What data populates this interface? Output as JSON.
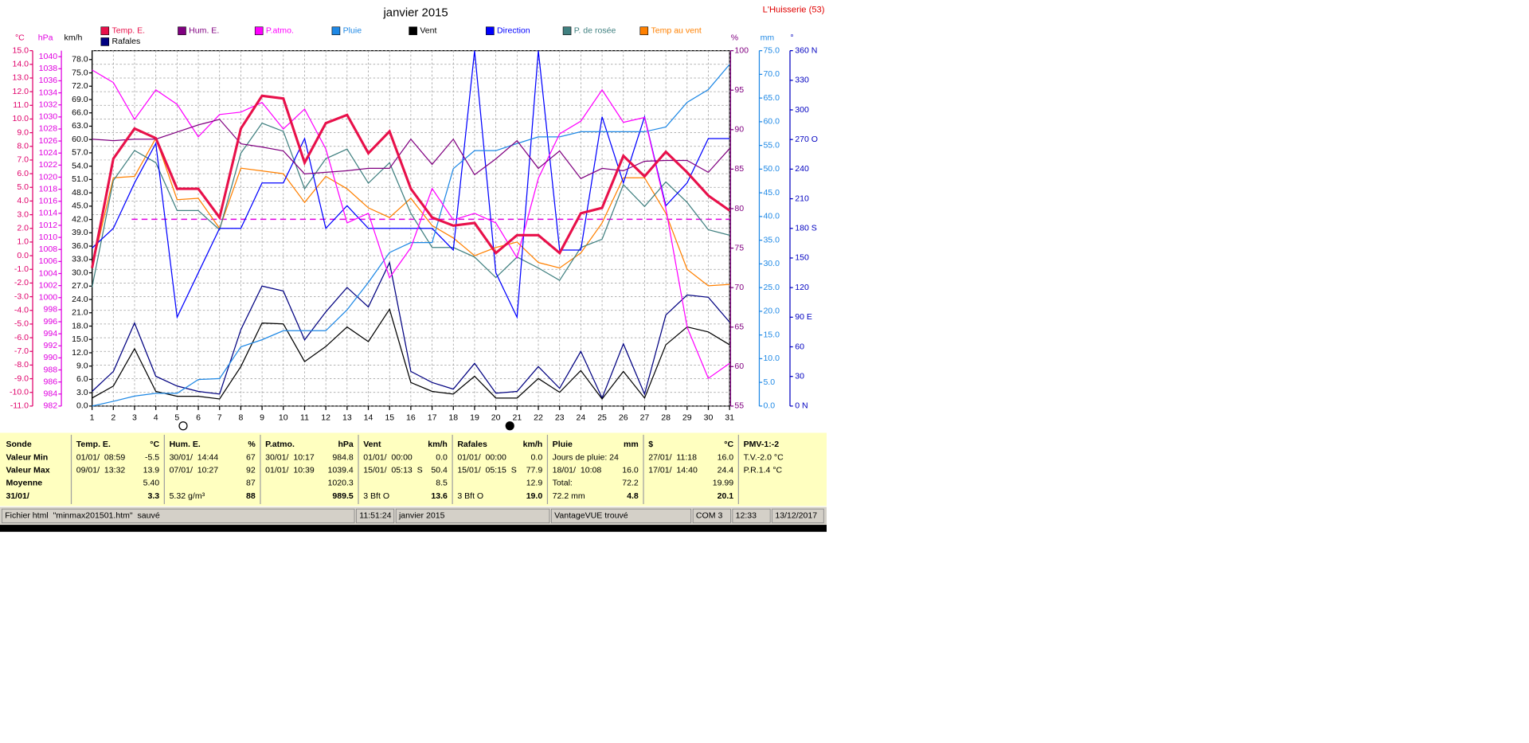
{
  "title": "janvier 2015",
  "station": "L'Huisserie (53)",
  "chart_data": {
    "type": "line",
    "grid": true,
    "categories": [
      1,
      2,
      3,
      4,
      5,
      6,
      7,
      8,
      9,
      10,
      11,
      12,
      13,
      14,
      15,
      16,
      17,
      18,
      19,
      20,
      21,
      22,
      23,
      24,
      25,
      26,
      27,
      28,
      29,
      30,
      31
    ],
    "axes": [
      {
        "id": "temp",
        "label": "°C",
        "side": "left",
        "color": "#e0006a",
        "lim": [
          -11,
          15
        ],
        "ticks": [
          {
            "value": -11,
            "label": "-11.0"
          },
          {
            "value": -10,
            "label": "-10.0"
          },
          {
            "value": -9,
            "label": "-9.0"
          },
          {
            "value": -8,
            "label": "-8.0"
          },
          {
            "value": -7,
            "label": "-7.0"
          },
          {
            "value": -6,
            "label": "-6.0"
          },
          {
            "value": -5,
            "label": "-5.0"
          },
          {
            "value": -4,
            "label": "-4.0"
          },
          {
            "value": -3,
            "label": "-3.0"
          },
          {
            "value": -2,
            "label": "-2.0"
          },
          {
            "value": -1,
            "label": "-1.0"
          },
          {
            "value": 0,
            "label": "0.0"
          },
          {
            "value": 1,
            "label": "1.0"
          },
          {
            "value": 2,
            "label": "2.0"
          },
          {
            "value": 3,
            "label": "3.0"
          },
          {
            "value": 4,
            "label": "4.0"
          },
          {
            "value": 5,
            "label": "5.0"
          },
          {
            "value": 6,
            "label": "6.0"
          },
          {
            "value": 7,
            "label": "7.0"
          },
          {
            "value": 8,
            "label": "8.0"
          },
          {
            "value": 9,
            "label": "9.0"
          },
          {
            "value": 10,
            "label": "10.0"
          },
          {
            "value": 11,
            "label": "11.0"
          },
          {
            "value": 12,
            "label": "12.0"
          },
          {
            "value": 13,
            "label": "13.0"
          },
          {
            "value": 14,
            "label": "14.0"
          },
          {
            "value": 15,
            "label": "15.0"
          }
        ]
      },
      {
        "id": "hpa",
        "label": "hPa",
        "side": "left",
        "color": "#e000e0",
        "lim": [
          982,
          1041
        ],
        "ticks": [
          982,
          984,
          986,
          988,
          990,
          992,
          994,
          996,
          998,
          1000,
          1002,
          1004,
          1006,
          1008,
          1010,
          1012,
          1014,
          1016,
          1018,
          1020,
          1022,
          1024,
          1026,
          1028,
          1030,
          1032,
          1034,
          1036,
          1038,
          1040
        ]
      },
      {
        "id": "kmh",
        "label": "km/h",
        "side": "left",
        "color": "#000000",
        "lim": [
          0,
          80
        ],
        "ticks": [
          {
            "value": 0,
            "label": "0.0"
          },
          {
            "value": 3,
            "label": "3.0"
          },
          {
            "value": 6,
            "label": "6.0"
          },
          {
            "value": 9,
            "label": "9.0"
          },
          {
            "value": 12,
            "label": "12.0"
          },
          {
            "value": 15,
            "label": "15.0"
          },
          {
            "value": 18,
            "label": "18.0"
          },
          {
            "value": 21,
            "label": "21.0"
          },
          {
            "value": 24,
            "label": "24.0"
          },
          {
            "value": 27,
            "label": "27.0"
          },
          {
            "value": 30,
            "label": "30.0"
          },
          {
            "value": 33,
            "label": "33.0"
          },
          {
            "value": 36,
            "label": "36.0"
          },
          {
            "value": 39,
            "label": "39.0"
          },
          {
            "value": 42,
            "label": "42.0"
          },
          {
            "value": 45,
            "label": "45.0"
          },
          {
            "value": 48,
            "label": "48.0"
          },
          {
            "value": 51,
            "label": "51.0"
          },
          {
            "value": 54,
            "label": "54.0"
          },
          {
            "value": 57,
            "label": "57.0"
          },
          {
            "value": 60,
            "label": "60.0"
          },
          {
            "value": 63,
            "label": "63.0"
          },
          {
            "value": 66,
            "label": "66.0"
          },
          {
            "value": 69,
            "label": "69.0"
          },
          {
            "value": 72,
            "label": "72.0"
          },
          {
            "value": 75,
            "label": "75.0"
          },
          {
            "value": 78,
            "label": "78.0"
          }
        ]
      },
      {
        "id": "hum",
        "label": "%",
        "side": "right",
        "color": "#800080",
        "lim": [
          55,
          100
        ],
        "ticks": [
          55,
          60,
          65,
          70,
          75,
          80,
          85,
          90,
          95,
          100
        ]
      },
      {
        "id": "mm",
        "label": "mm",
        "side": "right",
        "color": "#1e88e5",
        "lim": [
          0,
          75
        ],
        "ticks": [
          {
            "value": 0,
            "label": "0.0"
          },
          {
            "value": 5,
            "label": "5.0"
          },
          {
            "value": 10,
            "label": "10.0"
          },
          {
            "value": 15,
            "label": "15.0"
          },
          {
            "value": 20,
            "label": "20.0"
          },
          {
            "value": 25,
            "label": "25.0"
          },
          {
            "value": 30,
            "label": "30.0"
          },
          {
            "value": 35,
            "label": "35.0"
          },
          {
            "value": 40,
            "label": "40.0"
          },
          {
            "value": 45,
            "label": "45.0"
          },
          {
            "value": 50,
            "label": "50.0"
          },
          {
            "value": 55,
            "label": "55.0"
          },
          {
            "value": 60,
            "label": "60.0"
          },
          {
            "value": 65,
            "label": "65.0"
          },
          {
            "value": 70,
            "label": "70.0"
          },
          {
            "value": 75,
            "label": "75.0"
          }
        ]
      },
      {
        "id": "dir",
        "label": "°",
        "side": "right",
        "color": "#0000c0",
        "lim": [
          0,
          360
        ],
        "ticks": [
          {
            "value": 0,
            "label": "0   N"
          },
          30,
          60,
          {
            "value": 90,
            "label": "90   E"
          },
          120,
          150,
          {
            "value": 180,
            "label": "180 S"
          },
          210,
          240,
          {
            "value": 270,
            "label": "270 O"
          },
          300,
          330,
          {
            "value": 360,
            "label": "360 N"
          }
        ]
      }
    ],
    "pressure_reference": 1013,
    "series": [
      {
        "name": "Temp. E.",
        "axis": "temp",
        "color": "#e8104a",
        "line_width": 2.5,
        "values": [
          -0.9,
          7.1,
          9.3,
          8.6,
          4.9,
          4.9,
          2.8,
          9.3,
          11.7,
          11.5,
          6.8,
          9.7,
          10.3,
          7.5,
          9.1,
          4.9,
          2.8,
          2.2,
          2.4,
          0.2,
          1.5,
          1.5,
          0.2,
          3.1,
          3.5,
          7.3,
          5.8,
          7.6,
          6.1,
          4.4,
          3.3
        ]
      },
      {
        "name": "Hum. E.",
        "axis": "hum",
        "color": "#800080",
        "line_width": 1,
        "values": [
          88.8,
          88.6,
          88.8,
          88.8,
          89.7,
          90.6,
          91.3,
          88.2,
          87.8,
          87.3,
          84.4,
          84.6,
          84.8,
          85.1,
          85.1,
          88.8,
          85.6,
          88.8,
          84.3,
          86.3,
          88.6,
          85.1,
          87.3,
          83.8,
          85.1,
          84.8,
          86.0,
          86.1,
          86.1,
          84.6,
          87.6
        ]
      },
      {
        "name": "P.atmo.",
        "axis": "hpa",
        "color": "#ff00ff",
        "line_width": 1,
        "values": [
          1037.8,
          1035.7,
          1029.6,
          1034.5,
          1032.1,
          1026.7,
          1030.4,
          1030.8,
          1032.4,
          1028,
          1031.3,
          1024.7,
          1012.4,
          1014,
          1003.3,
          1008.3,
          1018.1,
          1012.9,
          1014,
          1012.4,
          1006.6,
          1019.8,
          1027.2,
          1029.3,
          1034.5,
          1029.1,
          1029.9,
          1014.8,
          995.1,
          986.6,
          989.1
        ]
      },
      {
        "name": "Pluie",
        "axis": "mm",
        "color": "#1e88e5",
        "line_width": 1,
        "values": [
          0,
          1.0,
          2.1,
          2.7,
          2.7,
          5.6,
          5.8,
          12.5,
          14.0,
          15.9,
          15.9,
          15.9,
          20.3,
          26.1,
          32.4,
          34.5,
          34.5,
          50.1,
          53.9,
          53.9,
          55.4,
          56.8,
          56.8,
          57.9,
          57.9,
          57.9,
          57.9,
          58.9,
          64.1,
          66.8,
          72.1
        ]
      },
      {
        "name": "Vent",
        "axis": "kmh",
        "color": "#000000",
        "line_width": 1,
        "values": [
          1.8,
          4.5,
          12.9,
          3.3,
          2.2,
          2.2,
          1.6,
          8.9,
          18.7,
          18.5,
          10.0,
          13.4,
          17.8,
          14.5,
          21.8,
          5.3,
          3.3,
          2.7,
          6.7,
          1.8,
          1.8,
          6.2,
          3.1,
          8.0,
          1.6,
          7.8,
          1.8,
          13.8,
          17.8,
          16.7,
          13.8
        ]
      },
      {
        "name": "Direction",
        "axis": "dir",
        "color": "#0000ff",
        "line_width": 1,
        "values": [
          160,
          180,
          226,
          266,
          90,
          135,
          180,
          180,
          226,
          226,
          271,
          180,
          203,
          180,
          180,
          180,
          180,
          158,
          360,
          135,
          90,
          360,
          158,
          158,
          293,
          226,
          293,
          203,
          226,
          271,
          271
        ]
      },
      {
        "name": "P. de rosée",
        "axis": "temp",
        "color": "#408080",
        "line_width": 1,
        "values": [
          -2.3,
          5.5,
          7.7,
          6.8,
          3.3,
          3.3,
          1.9,
          7.5,
          9.7,
          9.1,
          4.9,
          7.1,
          7.8,
          5.3,
          6.8,
          3.1,
          0.6,
          0.6,
          -0.1,
          -1.6,
          -0.1,
          -0.9,
          -1.8,
          0.6,
          1.2,
          5.2,
          3.6,
          5.4,
          3.9,
          1.9,
          1.5
        ]
      },
      {
        "name": "Temp au vent",
        "axis": "temp",
        "color": "#ff8000",
        "line_width": 1,
        "values": [
          -0.9,
          5.7,
          5.8,
          8.6,
          4.1,
          4.2,
          2.0,
          6.4,
          6.2,
          6.0,
          3.9,
          5.8,
          4.9,
          3.5,
          2.8,
          4.2,
          2.2,
          1.3,
          0.0,
          0.6,
          1.0,
          -0.5,
          -0.9,
          0.2,
          2.4,
          5.7,
          5.7,
          3.1,
          -1.0,
          -2.2,
          -2.1
        ]
      },
      {
        "name": "Rafales",
        "axis": "kmh",
        "color": "#000080",
        "line_width": 1,
        "values": [
          3.3,
          7.8,
          18.7,
          6.7,
          4.5,
          3.3,
          2.7,
          17.2,
          27.0,
          25.9,
          14.9,
          21.2,
          26.7,
          22.3,
          32.3,
          7.8,
          5.3,
          3.8,
          9.6,
          2.9,
          3.3,
          8.9,
          4.0,
          12.3,
          1.8,
          14.0,
          2.7,
          20.5,
          25.0,
          24.5,
          18.9
        ]
      }
    ]
  },
  "table": {
    "row_labels": [
      "Sonde",
      "Valeur Min",
      "Valeur Max",
      "Moyenne",
      "31/01/"
    ],
    "columns": [
      {
        "header": "Temp. E.",
        "unit": "°C",
        "rows": [
          {
            "left": "01/01/  08:59",
            "right": "-5.5"
          },
          {
            "left": "09/01/  13:32",
            "right": "13.9"
          },
          {
            "right": "5.40"
          },
          {
            "right": "3.3"
          }
        ]
      },
      {
        "header": "Hum. E.",
        "unit": "%",
        "rows": [
          {
            "left": "30/01/  14:44",
            "right": "67"
          },
          {
            "left": "07/01/  10:27",
            "right": "92"
          },
          {
            "right": "87"
          },
          {
            "left": "5.32 g/m³",
            "right": "88"
          }
        ]
      },
      {
        "header": "P.atmo.",
        "unit": "hPa",
        "rows": [
          {
            "left": "30/01/  10:17",
            "right": "984.8"
          },
          {
            "left": "01/01/  10:39",
            "right": "1039.4"
          },
          {
            "right": "1020.3"
          },
          {
            "right": "989.5"
          }
        ]
      },
      {
        "header": "Vent",
        "unit": "km/h",
        "rows": [
          {
            "left": "01/01/  00:00",
            "right": "0.0"
          },
          {
            "left": "15/01/  05:13  S",
            "right": "50.4"
          },
          {
            "right": "8.5"
          },
          {
            "left": "3 Bft O",
            "right": "13.6"
          }
        ]
      },
      {
        "header": "Rafales",
        "unit": "km/h",
        "rows": [
          {
            "left": "01/01/  00:00",
            "right": "0.0"
          },
          {
            "left": "15/01/  05:15  S",
            "right": "77.9"
          },
          {
            "right": "12.9"
          },
          {
            "left": "3 Bft O",
            "right": "19.0"
          }
        ]
      },
      {
        "header": "Pluie",
        "unit": "mm",
        "rows": [
          {
            "left": "Jours de pluie: 24"
          },
          {
            "left": "18/01/  10:08",
            "right": "16.0"
          },
          {
            "left": "Total:",
            "right": "72.2"
          },
          {
            "left": "72.2 mm",
            "right": "4.8"
          }
        ]
      },
      {
        "header": "$",
        "unit": "°C",
        "rows": [
          {
            "left": "27/01/  11:18",
            "right": "16.0"
          },
          {
            "left": "17/01/  14:40",
            "right": "24.4"
          },
          {
            "right": "19.99"
          },
          {
            "right": "20.1"
          }
        ]
      },
      {
        "header": "PMV-1:-2",
        "rows": [
          {
            "left": "T.V.-2.0 °C"
          },
          {
            "left": "P.R.1.4 °C"
          }
        ]
      }
    ]
  },
  "status_bar": [
    "Fichier html  \"minmax201501.htm\"  sauvé",
    "11:51:24",
    "janvier 2015",
    "VantageVUE trouvé",
    "COM 3",
    "12:33",
    "13/12/2017"
  ]
}
